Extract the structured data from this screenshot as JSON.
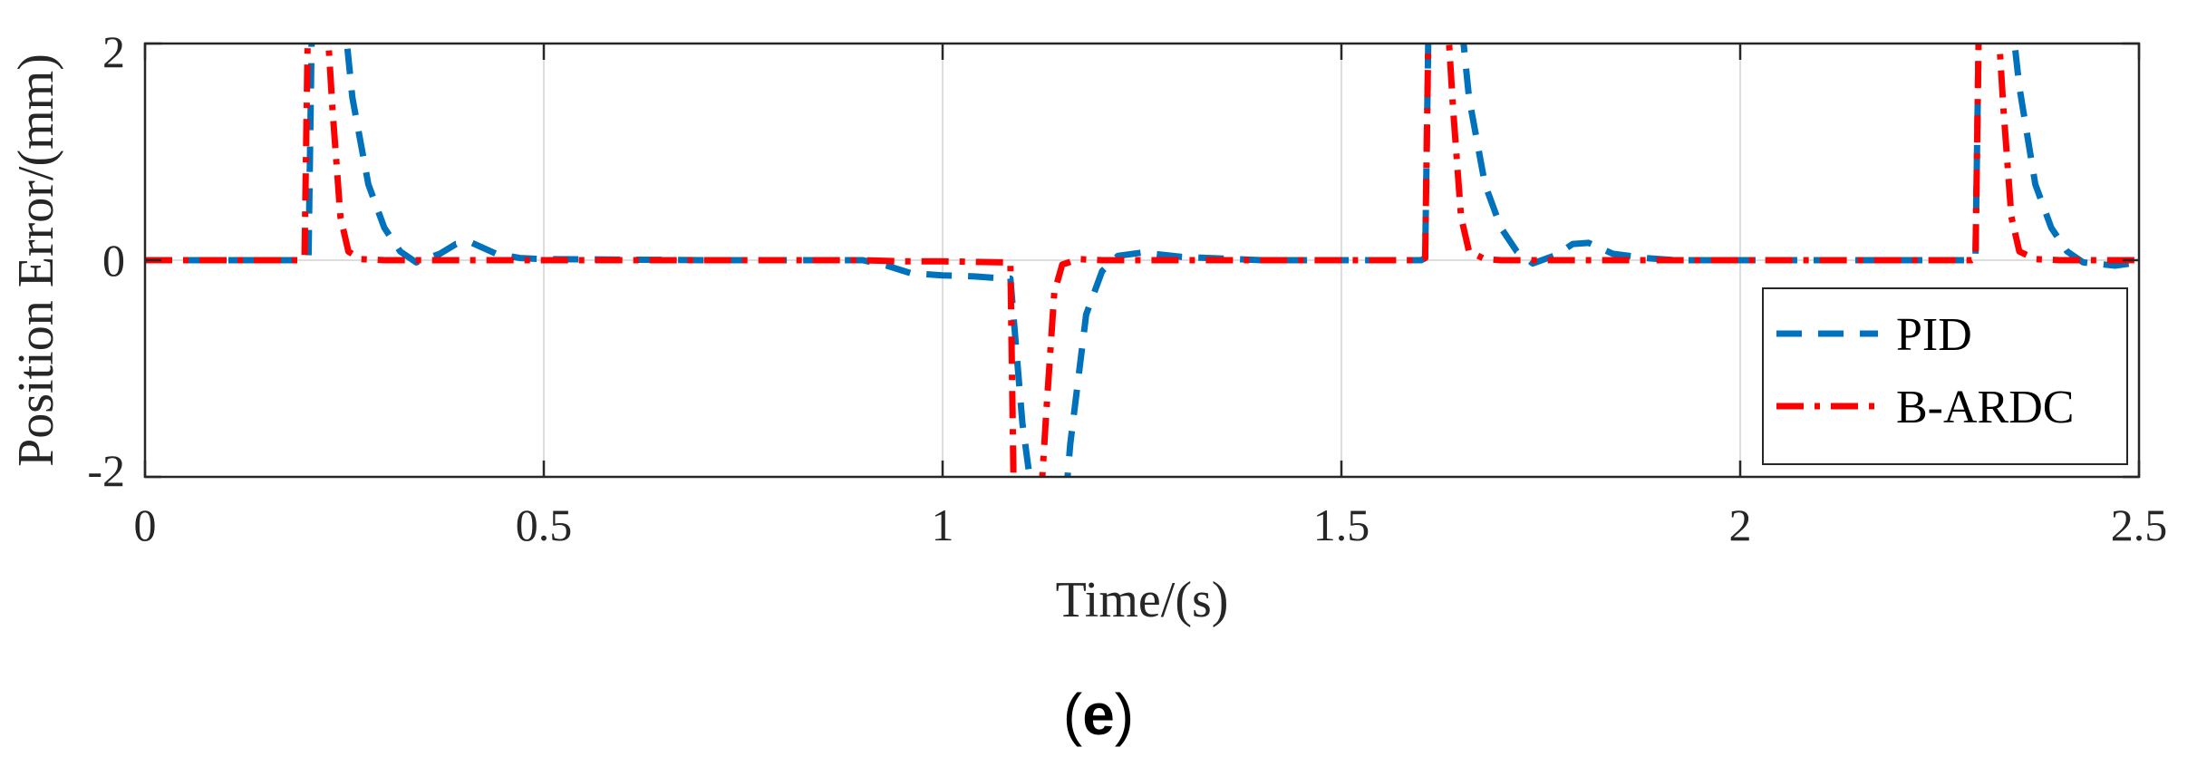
{
  "chart_data": {
    "type": "line",
    "xlabel": "Time/(s)",
    "ylabel": "Position Error/(mm)",
    "xlim": [
      0,
      2.5
    ],
    "ylim": [
      -2,
      2
    ],
    "xticks": [
      "0",
      "0.5",
      "1",
      "1.5",
      "2",
      "2.5"
    ],
    "yticks": [
      "-2",
      "0",
      "2"
    ],
    "grid": true,
    "legend_position": "lower-right",
    "series": [
      {
        "name": "PID",
        "color": "#0072BD",
        "style": "dashed",
        "points": [
          [
            0,
            0
          ],
          [
            0.2,
            0
          ],
          [
            0.205,
            0.02
          ],
          [
            0.21,
            2.6
          ],
          [
            0.245,
            2.6
          ],
          [
            0.26,
            1.5
          ],
          [
            0.28,
            0.7
          ],
          [
            0.3,
            0.3
          ],
          [
            0.32,
            0.08
          ],
          [
            0.34,
            -0.02
          ],
          [
            0.37,
            0.06
          ],
          [
            0.39,
            0.15
          ],
          [
            0.41,
            0.16
          ],
          [
            0.44,
            0.06
          ],
          [
            0.47,
            0.02
          ],
          [
            0.5,
            0.01
          ],
          [
            0.7,
            0.0
          ],
          [
            0.9,
            0.0
          ],
          [
            0.93,
            -0.05
          ],
          [
            0.96,
            -0.12
          ],
          [
            1.0,
            -0.14
          ],
          [
            1.04,
            -0.15
          ],
          [
            1.08,
            -0.17
          ],
          [
            1.085,
            -0.17
          ],
          [
            1.1,
            -1.5
          ],
          [
            1.12,
            -2.6
          ],
          [
            1.15,
            -2.6
          ],
          [
            1.16,
            -1.7
          ],
          [
            1.18,
            -0.5
          ],
          [
            1.2,
            -0.1
          ],
          [
            1.22,
            0.04
          ],
          [
            1.25,
            0.07
          ],
          [
            1.3,
            0.03
          ],
          [
            1.4,
            0.0
          ],
          [
            1.6,
            0.0
          ],
          [
            1.605,
            0.02
          ],
          [
            1.61,
            2.6
          ],
          [
            1.645,
            2.6
          ],
          [
            1.66,
            1.5
          ],
          [
            1.68,
            0.7
          ],
          [
            1.7,
            0.3
          ],
          [
            1.72,
            0.08
          ],
          [
            1.74,
            -0.03
          ],
          [
            1.77,
            0.05
          ],
          [
            1.79,
            0.15
          ],
          [
            1.81,
            0.16
          ],
          [
            1.84,
            0.06
          ],
          [
            1.88,
            0.02
          ],
          [
            1.92,
            0.0
          ],
          [
            2.29,
            0.0
          ],
          [
            2.295,
            0.02
          ],
          [
            2.3,
            2.6
          ],
          [
            2.335,
            2.6
          ],
          [
            2.35,
            1.6
          ],
          [
            2.37,
            0.7
          ],
          [
            2.39,
            0.3
          ],
          [
            2.41,
            0.08
          ],
          [
            2.43,
            -0.02
          ],
          [
            2.47,
            -0.05
          ],
          [
            2.5,
            -0.02
          ]
        ]
      },
      {
        "name": "B-ARDC",
        "color": "#FF0000",
        "style": "dashdot",
        "points": [
          [
            0,
            0
          ],
          [
            0.195,
            0
          ],
          [
            0.2,
            0.02
          ],
          [
            0.205,
            2.6
          ],
          [
            0.225,
            2.6
          ],
          [
            0.235,
            1.4
          ],
          [
            0.245,
            0.4
          ],
          [
            0.255,
            0.08
          ],
          [
            0.27,
            0.01
          ],
          [
            0.3,
            0.0
          ],
          [
            0.9,
            0.0
          ],
          [
            0.95,
            -0.01
          ],
          [
            1.0,
            -0.01
          ],
          [
            1.08,
            -0.02
          ],
          [
            1.085,
            -0.02
          ],
          [
            1.09,
            -2.6
          ],
          [
            1.12,
            -2.6
          ],
          [
            1.13,
            -1.4
          ],
          [
            1.14,
            -0.3
          ],
          [
            1.15,
            -0.04
          ],
          [
            1.17,
            0.01
          ],
          [
            1.2,
            0.0
          ],
          [
            1.6,
            0.0
          ],
          [
            1.605,
            0.02
          ],
          [
            1.61,
            2.6
          ],
          [
            1.63,
            2.6
          ],
          [
            1.64,
            1.4
          ],
          [
            1.65,
            0.4
          ],
          [
            1.66,
            0.08
          ],
          [
            1.68,
            0.01
          ],
          [
            1.7,
            0.0
          ],
          [
            2.29,
            0.0
          ],
          [
            2.295,
            0.02
          ],
          [
            2.3,
            2.6
          ],
          [
            2.32,
            2.6
          ],
          [
            2.33,
            1.4
          ],
          [
            2.34,
            0.4
          ],
          [
            2.35,
            0.08
          ],
          [
            2.37,
            0.01
          ],
          [
            2.4,
            0.0
          ],
          [
            2.5,
            0.0
          ]
        ]
      }
    ]
  },
  "panel_label": {
    "open": "(",
    "letter": "e",
    "close": ")"
  }
}
